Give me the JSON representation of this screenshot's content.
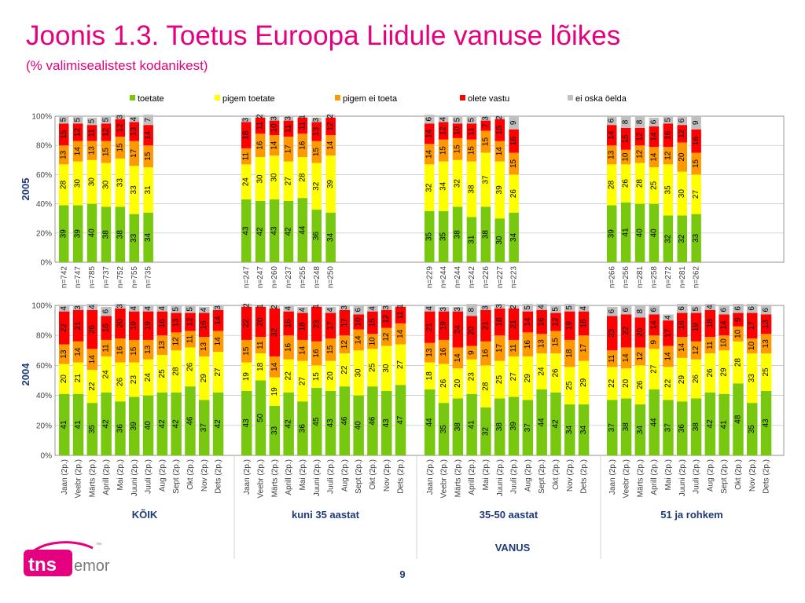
{
  "title": "Joonis 1.3. Toetus Euroopa Liidule vanuse lõikes",
  "subtitle": "(% valimisealistest kodanikest)",
  "page_number": "9",
  "logo": {
    "text_tns": "tns",
    "text_emor": "emor",
    "tm": "™"
  },
  "colors": {
    "toetate": "#77c80e",
    "pigem_toetate": "#ffff00",
    "pigem_ei_toeta": "#ff9900",
    "olete_vastu": "#ff0000",
    "ei_oska": "#c0c0c0",
    "accent": "#e4007e",
    "label": "#1f3a7a"
  },
  "chart_data": {
    "type": "bar",
    "stacked": true,
    "legend": [
      "toetate",
      "pigem toetate",
      "pigem ei toeta",
      "olete vastu",
      "ei oska öelda"
    ],
    "legend_position": "top",
    "x_axis_title": "VANUS",
    "group_labels": [
      "KÕIK",
      "kuni 35 aastat",
      "35-50 aastat",
      "51 ja rohkem"
    ],
    "y_ticks": [
      "0%",
      "20%",
      "40%",
      "60%",
      "80%",
      "100%"
    ],
    "ylim": [
      0,
      100
    ],
    "panels": [
      {
        "label": "2005",
        "groups": [
          {
            "name": "KÕIK",
            "bars": [
              {
                "x": "n=742",
                "values": [
                  39,
                  28,
                  13,
                  15,
                  5
                ]
              },
              {
                "x": "n=747",
                "values": [
                  39,
                  30,
                  14,
                  12,
                  5
                ]
              },
              {
                "x": "n=785",
                "values": [
                  40,
                  30,
                  13,
                  11,
                  5
                ]
              },
              {
                "x": "n=737",
                "values": [
                  38,
                  30,
                  15,
                  12,
                  5
                ]
              },
              {
                "x": "n=752",
                "values": [
                  38,
                  33,
                  15,
                  12,
                  3
                ]
              },
              {
                "x": "n=755",
                "values": [
                  33,
                  33,
                  17,
                  13,
                  4
                ]
              },
              {
                "x": "n=735",
                "values": [
                  34,
                  31,
                  15,
                  14,
                  7
                ]
              }
            ]
          },
          {
            "name": "kuni 35 aastat",
            "bars": [
              {
                "x": "n=247",
                "values": [
                  43,
                  24,
                  11,
                  18,
                  3
                ]
              },
              {
                "x": "n=247",
                "values": [
                  42,
                  30,
                  16,
                  11,
                  2
                ]
              },
              {
                "x": "n=260",
                "values": [
                  43,
                  30,
                  14,
                  10,
                  3
                ]
              },
              {
                "x": "n=237",
                "values": [
                  42,
                  27,
                  17,
                  11,
                  3
                ]
              },
              {
                "x": "n=255",
                "values": [
                  44,
                  28,
                  16,
                  11,
                  1
                ]
              },
              {
                "x": "n=248",
                "values": [
                  36,
                  32,
                  15,
                  13,
                  3
                ]
              },
              {
                "x": "n=250",
                "values": [
                  34,
                  39,
                  14,
                  12,
                  2
                ]
              }
            ]
          },
          {
            "name": "35-50 aastat",
            "bars": [
              {
                "x": "n=229",
                "values": [
                  35,
                  32,
                  14,
                  14,
                  6
                ]
              },
              {
                "x": "n=244",
                "values": [
                  35,
                  34,
                  15,
                  12,
                  4
                ]
              },
              {
                "x": "n=244",
                "values": [
                  38,
                  32,
                  15,
                  10,
                  5
                ]
              },
              {
                "x": "n=242",
                "values": [
                  31,
                  38,
                  15,
                  11,
                  5
                ]
              },
              {
                "x": "n=226",
                "values": [
                  38,
                  37,
                  15,
                  7,
                  3
                ]
              },
              {
                "x": "n=227",
                "values": [
                  30,
                  39,
                  14,
                  15,
                  2
                ]
              },
              {
                "x": "n=223",
                "values": [
                  34,
                  26,
                  15,
                  16,
                  9
                ]
              }
            ]
          },
          {
            "name": "51 ja rohkem",
            "bars": [
              {
                "x": "n=266",
                "values": [
                  39,
                  28,
                  13,
                  14,
                  6
                ]
              },
              {
                "x": "n=256",
                "values": [
                  41,
                  26,
                  10,
                  15,
                  8
                ]
              },
              {
                "x": "n=281",
                "values": [
                  40,
                  28,
                  12,
                  12,
                  8
                ]
              },
              {
                "x": "n=258",
                "values": [
                  40,
                  25,
                  14,
                  14,
                  6
                ]
              },
              {
                "x": "n=272",
                "values": [
                  32,
                  35,
                  12,
                  16,
                  5
                ]
              },
              {
                "x": "n=281",
                "values": [
                  32,
                  30,
                  20,
                  12,
                  6
                ]
              },
              {
                "x": "n=262",
                "values": [
                  33,
                  27,
                  15,
                  16,
                  9
                ]
              }
            ]
          }
        ]
      },
      {
        "label": "2004",
        "groups": [
          {
            "name": "KÕIK",
            "bars": [
              {
                "x": "Jaan (2p.)",
                "values": [
                  41,
                  20,
                  13,
                  22,
                  4
                ]
              },
              {
                "x": "Veebr (2p.)",
                "values": [
                  41,
                  21,
                  14,
                  21,
                  3
                ]
              },
              {
                "x": "Märts (2p.)",
                "values": [
                  35,
                  22,
                  14,
                  26,
                  4
                ]
              },
              {
                "x": "Aprill (2p.)",
                "values": [
                  42,
                  24,
                  11,
                  16,
                  6
                ]
              },
              {
                "x": "Mai (2p.)",
                "values": [
                  36,
                  26,
                  16,
                  20,
                  3
                ]
              },
              {
                "x": "Juuni (2p.)",
                "values": [
                  39,
                  23,
                  15,
                  19,
                  4
                ]
              },
              {
                "x": "Juuli (2p.)",
                "values": [
                  40,
                  24,
                  13,
                  19,
                  4
                ]
              },
              {
                "x": "Aug (2p.)",
                "values": [
                  42,
                  25,
                  13,
                  16,
                  4
                ]
              },
              {
                "x": "Sept (2p.)",
                "values": [
                  42,
                  28,
                  12,
                  13,
                  5
                ]
              },
              {
                "x": "Okt (2p.)",
                "values": [
                  46,
                  26,
                  11,
                  12,
                  5
                ]
              },
              {
                "x": "Nov (2p.)",
                "values": [
                  37,
                  29,
                  13,
                  16,
                  4
                ]
              },
              {
                "x": "Dets (2p.)",
                "values": [
                  42,
                  27,
                  14,
                  14,
                  3
                ]
              }
            ]
          },
          {
            "name": "kuni 35 aastat",
            "bars": [
              {
                "x": "Jaan (2p.)",
                "values": [
                  43,
                  19,
                  15,
                  22,
                  2
                ]
              },
              {
                "x": "Veebr (2p.)",
                "values": [
                  50,
                  18,
                  11,
                  20,
                  1
                ]
              },
              {
                "x": "Märts (2p.)",
                "values": [
                  33,
                  19,
                  14,
                  32,
                  2
                ]
              },
              {
                "x": "Aprill (2p.)",
                "values": [
                  42,
                  22,
                  16,
                  16,
                  4
                ]
              },
              {
                "x": "Mai (2p.)",
                "values": [
                  36,
                  27,
                  14,
                  18,
                  4
                ]
              },
              {
                "x": "Juuni (2p.)",
                "values": [
                  45,
                  15,
                  16,
                  23,
                  1
                ]
              },
              {
                "x": "Juuli (2p.)",
                "values": [
                  43,
                  20,
                  15,
                  17,
                  4
                ]
              },
              {
                "x": "Aug (2p.)",
                "values": [
                  46,
                  22,
                  12,
                  17,
                  3
                ]
              },
              {
                "x": "Sept (2p.)",
                "values": [
                  40,
                  30,
                  14,
                  10,
                  6
                ]
              },
              {
                "x": "Okt (2p.)",
                "values": [
                  46,
                  25,
                  10,
                  15,
                  4
                ]
              },
              {
                "x": "Nov (2p.)",
                "values": [
                  43,
                  30,
                  12,
                  12,
                  3
                ]
              },
              {
                "x": "Dets (2p.)",
                "values": [
                  47,
                  27,
                  14,
                  11,
                  1
                ]
              }
            ]
          },
          {
            "name": "35-50 aastat",
            "bars": [
              {
                "x": "Jaan (2p.)",
                "values": [
                  44,
                  18,
                  13,
                  21,
                  4
                ]
              },
              {
                "x": "Veebr (2p.)",
                "values": [
                  35,
                  26,
                  16,
                  19,
                  3
                ]
              },
              {
                "x": "Märts (2p.)",
                "values": [
                  38,
                  20,
                  14,
                  24,
                  3
                ]
              },
              {
                "x": "Aprill (2p.)",
                "values": [
                  41,
                  23,
                  9,
                  20,
                  8
                ]
              },
              {
                "x": "Mai (2p.)",
                "values": [
                  32,
                  28,
                  16,
                  21,
                  3
                ]
              },
              {
                "x": "Juuni (2p.)",
                "values": [
                  38,
                  25,
                  17,
                  18,
                  3
                ]
              },
              {
                "x": "Juuli (2p.)",
                "values": [
                  39,
                  27,
                  11,
                  21,
                  2
                ]
              },
              {
                "x": "Aug (2p.)",
                "values": [
                  37,
                  29,
                  16,
                  14,
                  5
                ]
              },
              {
                "x": "Sept (2p.)",
                "values": [
                  44,
                  24,
                  13,
                  16,
                  4
                ]
              },
              {
                "x": "Okt (2p.)",
                "values": [
                  42,
                  26,
                  15,
                  12,
                  5
                ]
              },
              {
                "x": "Nov (2p.)",
                "values": [
                  34,
                  25,
                  18,
                  19,
                  5
                ]
              },
              {
                "x": "Dets (2p.)",
                "values": [
                  34,
                  29,
                  17,
                  16,
                  4
                ]
              }
            ]
          },
          {
            "name": "51 ja rohkem",
            "bars": [
              {
                "x": "Jaan (2p.)",
                "values": [
                  37,
                  22,
                  11,
                  23,
                  6
                ]
              },
              {
                "x": "Veebr (2p.)",
                "values": [
                  38,
                  20,
                  14,
                  22,
                  6
                ]
              },
              {
                "x": "Märts (2p.)",
                "values": [
                  34,
                  26,
                  12,
                  20,
                  8
                ]
              },
              {
                "x": "Aprill (2p.)",
                "values": [
                  44,
                  27,
                  9,
                  14,
                  6
                ]
              },
              {
                "x": "Mai (2p.)",
                "values": [
                  37,
                  22,
                  14,
                  17,
                  4
                ]
              },
              {
                "x": "Juuni (2p.)",
                "values": [
                  36,
                  29,
                  14,
                  16,
                  6
                ]
              },
              {
                "x": "Juuli (2p.)",
                "values": [
                  38,
                  26,
                  12,
                  19,
                  5
                ]
              },
              {
                "x": "Aug (2p.)",
                "values": [
                  42,
                  26,
                  11,
                  18,
                  4
                ]
              },
              {
                "x": "Sept (2p.)",
                "values": [
                  41,
                  29,
                  10,
                  14,
                  6
                ]
              },
              {
                "x": "Okt (2p.)",
                "values": [
                  48,
                  28,
                  10,
                  9,
                  6
                ]
              },
              {
                "x": "Nov (2p.)",
                "values": [
                  35,
                  33,
                  10,
                  17,
                  6
                ]
              },
              {
                "x": "Dets (2p.)",
                "values": [
                  43,
                  25,
                  13,
                  13,
                  6
                ]
              }
            ]
          }
        ]
      }
    ]
  }
}
